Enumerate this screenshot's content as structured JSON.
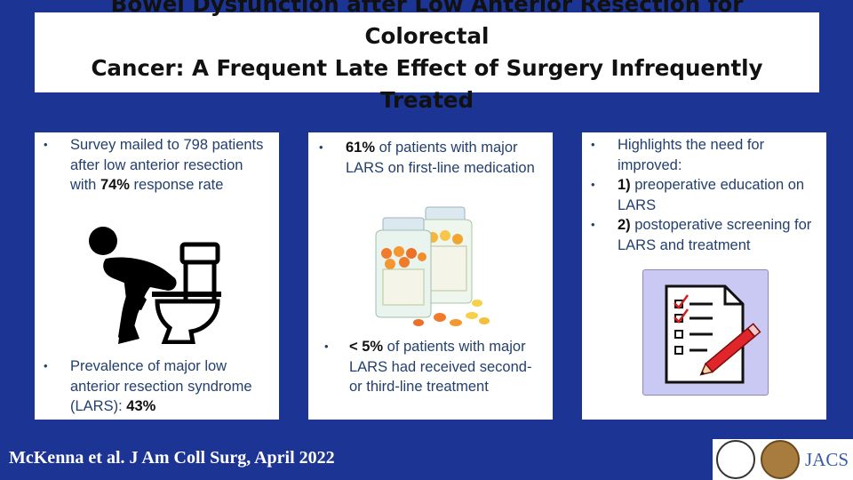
{
  "title": {
    "line1": "Bowel Dysfunction after Low Anterior Resection for Colorectal",
    "line2": "Cancer: A Frequent Late Effect of Surgery Infrequently Treated"
  },
  "panel1": {
    "bullet1": {
      "pre": "Survey mailed to 798 patients after low anterior resection with ",
      "bold": "74%",
      "post": " response rate"
    },
    "bullet2": {
      "pre": "Prevalence of major low anterior resection syndrome (LARS): ",
      "bold": "43%",
      "post": ""
    },
    "image_icon": "toilet-sitting-person-icon"
  },
  "panel2": {
    "bullet1": {
      "pre": "",
      "bold": "61%",
      "post": " of patients with major LARS on first-line medication"
    },
    "bullet2": {
      "pre": "",
      "bold": "< 5%",
      "post": " of patients with major LARS had received second- or third-line treatment"
    },
    "image_icon": "medicine-bottles-icon"
  },
  "panel3": {
    "bullet1": {
      "text": "Highlights the need for improved:"
    },
    "bullet2": {
      "bold": "1)",
      "text": " preoperative education on LARS"
    },
    "bullet3": {
      "bold": "2)",
      "text": " postoperative screening for LARS and treatment"
    },
    "image_icon": "checklist-pencil-icon"
  },
  "footer": {
    "citation": "McKenna et al. J Am Coll Surg, April 2022",
    "journal_logo": "JACS"
  },
  "colors": {
    "background": "#1c3594",
    "panel_text": "#24406e",
    "checklist_bg": "#c9c9f4"
  }
}
